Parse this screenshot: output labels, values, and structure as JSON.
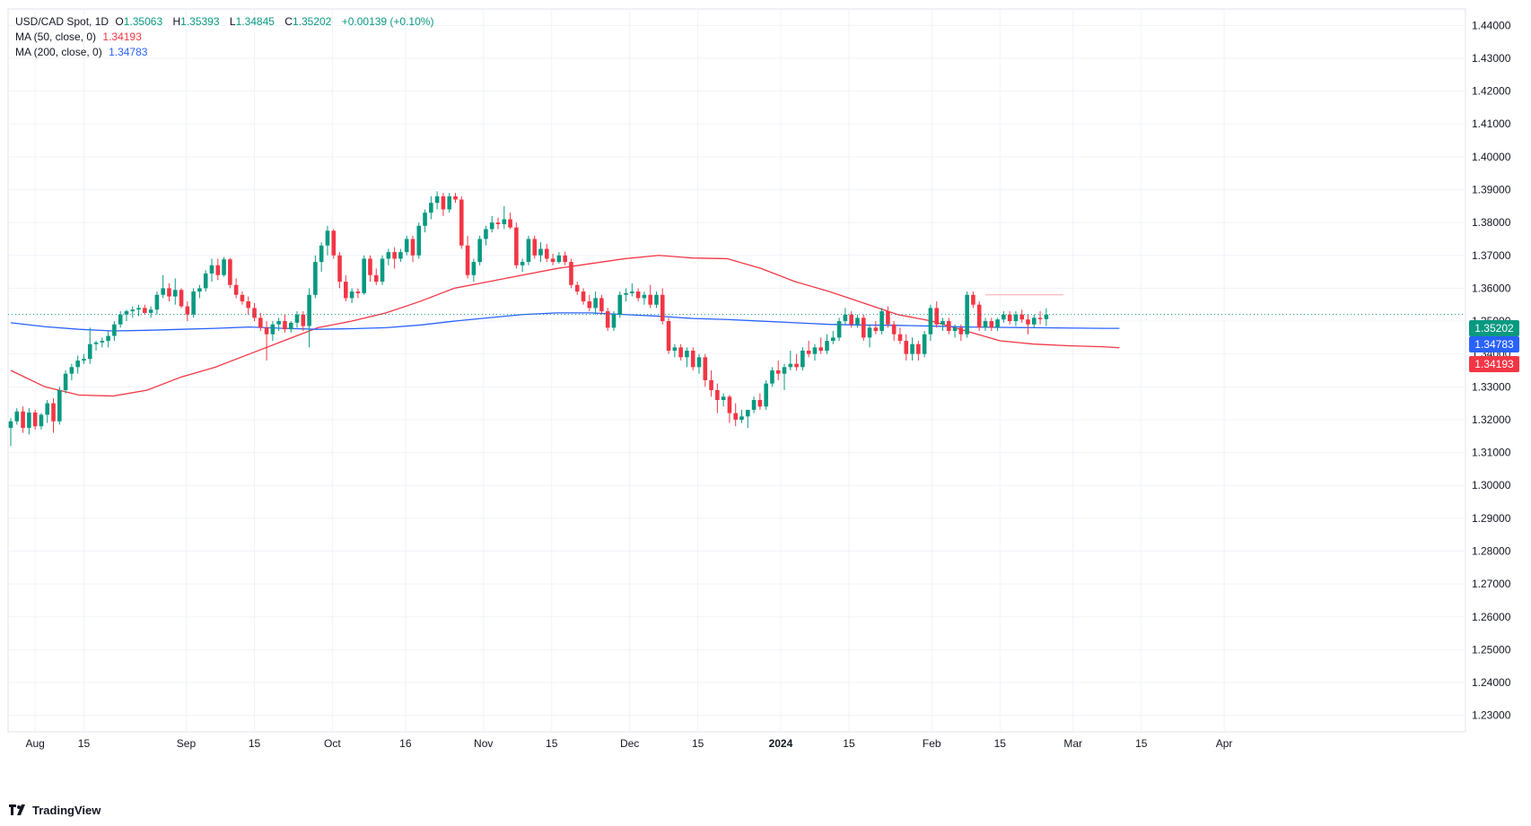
{
  "legend": {
    "symbol": "USD/CAD Spot, 1D",
    "o_label": "O",
    "open": "1.35063",
    "h_label": "H",
    "high": "1.35393",
    "l_label": "L",
    "low": "1.34845",
    "c_label": "C",
    "close": "1.35202",
    "change": "+0.00139 (+0.10%)",
    "ma50_label": "MA (50, close, 0)",
    "ma50_value": "1.34193",
    "ma200_label": "MA (200, close, 0)",
    "ma200_value": "1.34783"
  },
  "badges": {
    "last": "1.35202",
    "ma200": "1.34783",
    "ma50": "1.34193"
  },
  "brand": "TradingView",
  "colors": {
    "up": "#089981",
    "down": "#f23645",
    "ma50": "#f23645",
    "ma200": "#2962ff",
    "grid": "#f0f3fa",
    "text": "#131722"
  },
  "chart_data": {
    "type": "candlestick",
    "ylim": [
      1.225,
      1.445
    ],
    "y_ticks": [
      "1.23000",
      "1.24000",
      "1.25000",
      "1.26000",
      "1.27000",
      "1.28000",
      "1.29000",
      "1.30000",
      "1.31000",
      "1.32000",
      "1.33000",
      "1.34000",
      "1.35000",
      "1.36000",
      "1.37000",
      "1.38000",
      "1.39000",
      "1.40000",
      "1.41000",
      "1.42000",
      "1.43000",
      "1.44000"
    ],
    "x_ticks": [
      {
        "label": "Aug",
        "day": 5,
        "bold": false
      },
      {
        "label": "15",
        "day": 15,
        "bold": false
      },
      {
        "label": "Sep",
        "day": 36,
        "bold": false
      },
      {
        "label": "15",
        "day": 50,
        "bold": false
      },
      {
        "label": "Oct",
        "day": 66,
        "bold": false
      },
      {
        "label": "16",
        "day": 81,
        "bold": false
      },
      {
        "label": "Nov",
        "day": 97,
        "bold": false
      },
      {
        "label": "15",
        "day": 111,
        "bold": false
      },
      {
        "label": "Dec",
        "day": 127,
        "bold": false
      },
      {
        "label": "15",
        "day": 141,
        "bold": false
      },
      {
        "label": "2024",
        "day": 158,
        "bold": true
      },
      {
        "label": "15",
        "day": 172,
        "bold": false
      },
      {
        "label": "Feb",
        "day": 189,
        "bold": false
      },
      {
        "label": "15",
        "day": 203,
        "bold": false
      },
      {
        "label": "Mar",
        "day": 218,
        "bold": false
      },
      {
        "label": "15",
        "day": 232,
        "bold": false
      },
      {
        "label": "Apr",
        "day": 249,
        "bold": false
      }
    ],
    "candles": [
      [
        1.3175,
        1.3205,
        1.312,
        1.3195
      ],
      [
        1.3195,
        1.3235,
        1.3185,
        1.3225
      ],
      [
        1.3225,
        1.324,
        1.316,
        1.3175
      ],
      [
        1.3175,
        1.3235,
        1.3155,
        1.3222
      ],
      [
        1.3222,
        1.323,
        1.317,
        1.318
      ],
      [
        1.318,
        1.322,
        1.317,
        1.3215
      ],
      [
        1.3215,
        1.326,
        1.319,
        1.325
      ],
      [
        1.325,
        1.3265,
        1.316,
        1.3195
      ],
      [
        1.3195,
        1.33,
        1.3185,
        1.329
      ],
      [
        1.329,
        1.335,
        1.328,
        1.334
      ],
      [
        1.334,
        1.337,
        1.332,
        1.336
      ],
      [
        1.336,
        1.3395,
        1.334,
        1.338
      ],
      [
        1.338,
        1.34,
        1.337,
        1.3385
      ],
      [
        1.3385,
        1.348,
        1.337,
        1.343
      ],
      [
        1.343,
        1.344,
        1.341,
        1.3435
      ],
      [
        1.3435,
        1.345,
        1.342,
        1.344
      ],
      [
        1.344,
        1.347,
        1.342,
        1.3455
      ],
      [
        1.3455,
        1.35,
        1.344,
        1.349
      ],
      [
        1.349,
        1.353,
        1.348,
        1.352
      ],
      [
        1.352,
        1.3535,
        1.35,
        1.353
      ],
      [
        1.353,
        1.3545,
        1.351,
        1.3535
      ],
      [
        1.3535,
        1.355,
        1.3515,
        1.354
      ],
      [
        1.354,
        1.355,
        1.352,
        1.3525
      ],
      [
        1.3525,
        1.3545,
        1.351,
        1.3535
      ],
      [
        1.3535,
        1.359,
        1.352,
        1.358
      ],
      [
        1.358,
        1.364,
        1.357,
        1.36
      ],
      [
        1.36,
        1.3615,
        1.356,
        1.3575
      ],
      [
        1.3575,
        1.363,
        1.355,
        1.3595
      ],
      [
        1.3595,
        1.36,
        1.354,
        1.3545
      ],
      [
        1.3545,
        1.356,
        1.35,
        1.352
      ],
      [
        1.352,
        1.36,
        1.351,
        1.359
      ],
      [
        1.359,
        1.361,
        1.357,
        1.36
      ],
      [
        1.36,
        1.3655,
        1.359,
        1.3645
      ],
      [
        1.3645,
        1.369,
        1.362,
        1.367
      ],
      [
        1.367,
        1.369,
        1.3625,
        1.364
      ],
      [
        1.364,
        1.3695,
        1.3635,
        1.3688
      ],
      [
        1.3688,
        1.3692,
        1.36,
        1.361
      ],
      [
        1.361,
        1.363,
        1.357,
        1.358
      ],
      [
        1.358,
        1.359,
        1.355,
        1.356
      ],
      [
        1.356,
        1.3575,
        1.352,
        1.354
      ],
      [
        1.354,
        1.3555,
        1.35,
        1.351
      ],
      [
        1.351,
        1.3525,
        1.347,
        1.348
      ],
      [
        1.348,
        1.35,
        1.338,
        1.346
      ],
      [
        1.346,
        1.35,
        1.344,
        1.349
      ],
      [
        1.349,
        1.351,
        1.347,
        1.35
      ],
      [
        1.35,
        1.352,
        1.3465,
        1.3475
      ],
      [
        1.3475,
        1.35,
        1.3465,
        1.3495
      ],
      [
        1.3495,
        1.353,
        1.348,
        1.352
      ],
      [
        1.352,
        1.353,
        1.347,
        1.3485
      ],
      [
        1.3485,
        1.36,
        1.342,
        1.358
      ],
      [
        1.358,
        1.37,
        1.357,
        1.368
      ],
      [
        1.368,
        1.374,
        1.365,
        1.373
      ],
      [
        1.373,
        1.379,
        1.37,
        1.3775
      ],
      [
        1.3775,
        1.378,
        1.369,
        1.37
      ],
      [
        1.37,
        1.371,
        1.36,
        1.362
      ],
      [
        1.362,
        1.364,
        1.356,
        1.357
      ],
      [
        1.357,
        1.36,
        1.3555,
        1.359
      ],
      [
        1.359,
        1.36,
        1.357,
        1.3585
      ],
      [
        1.3585,
        1.37,
        1.358,
        1.369
      ],
      [
        1.369,
        1.37,
        1.362,
        1.364
      ],
      [
        1.364,
        1.366,
        1.361,
        1.362
      ],
      [
        1.362,
        1.37,
        1.361,
        1.369
      ],
      [
        1.369,
        1.372,
        1.367,
        1.371
      ],
      [
        1.371,
        1.3725,
        1.366,
        1.369
      ],
      [
        1.369,
        1.372,
        1.368,
        1.371
      ],
      [
        1.371,
        1.376,
        1.37,
        1.375
      ],
      [
        1.375,
        1.376,
        1.368,
        1.37
      ],
      [
        1.37,
        1.38,
        1.369,
        1.379
      ],
      [
        1.379,
        1.384,
        1.377,
        1.383
      ],
      [
        1.383,
        1.388,
        1.381,
        1.386
      ],
      [
        1.386,
        1.3895,
        1.384,
        1.388
      ],
      [
        1.388,
        1.389,
        1.382,
        1.384
      ],
      [
        1.384,
        1.389,
        1.383,
        1.388
      ],
      [
        1.388,
        1.389,
        1.386,
        1.387
      ],
      [
        1.387,
        1.388,
        1.372,
        1.373
      ],
      [
        1.373,
        1.376,
        1.363,
        1.364
      ],
      [
        1.364,
        1.369,
        1.362,
        1.368
      ],
      [
        1.368,
        1.376,
        1.367,
        1.375
      ],
      [
        1.375,
        1.379,
        1.373,
        1.378
      ],
      [
        1.378,
        1.382,
        1.377,
        1.38
      ],
      [
        1.38,
        1.3815,
        1.378,
        1.3795
      ],
      [
        1.3795,
        1.385,
        1.378,
        1.381
      ],
      [
        1.381,
        1.383,
        1.378,
        1.3785
      ],
      [
        1.3785,
        1.38,
        1.366,
        1.367
      ],
      [
        1.367,
        1.369,
        1.365,
        1.368
      ],
      [
        1.368,
        1.376,
        1.367,
        1.375
      ],
      [
        1.375,
        1.376,
        1.369,
        1.37
      ],
      [
        1.37,
        1.374,
        1.368,
        1.372
      ],
      [
        1.372,
        1.3735,
        1.368,
        1.369
      ],
      [
        1.369,
        1.3705,
        1.367,
        1.368
      ],
      [
        1.368,
        1.371,
        1.3675,
        1.37
      ],
      [
        1.37,
        1.3712,
        1.367,
        1.368
      ],
      [
        1.368,
        1.369,
        1.36,
        1.361
      ],
      [
        1.361,
        1.362,
        1.358,
        1.359
      ],
      [
        1.359,
        1.36,
        1.355,
        1.356
      ],
      [
        1.356,
        1.358,
        1.353,
        1.354
      ],
      [
        1.354,
        1.359,
        1.352,
        1.357
      ],
      [
        1.357,
        1.358,
        1.352,
        1.353
      ],
      [
        1.353,
        1.354,
        1.347,
        1.348
      ],
      [
        1.348,
        1.353,
        1.347,
        1.352
      ],
      [
        1.352,
        1.359,
        1.351,
        1.358
      ],
      [
        1.358,
        1.36,
        1.356,
        1.3585
      ],
      [
        1.3585,
        1.3615,
        1.3575,
        1.359
      ],
      [
        1.359,
        1.36,
        1.356,
        1.357
      ],
      [
        1.357,
        1.359,
        1.355,
        1.358
      ],
      [
        1.358,
        1.361,
        1.354,
        1.355
      ],
      [
        1.355,
        1.359,
        1.354,
        1.358
      ],
      [
        1.358,
        1.36,
        1.349,
        1.35
      ],
      [
        1.35,
        1.351,
        1.34,
        1.341
      ],
      [
        1.341,
        1.343,
        1.339,
        1.342
      ],
      [
        1.342,
        1.343,
        1.338,
        1.339
      ],
      [
        1.339,
        1.342,
        1.336,
        1.341
      ],
      [
        1.341,
        1.342,
        1.335,
        1.336
      ],
      [
        1.336,
        1.34,
        1.334,
        1.339
      ],
      [
        1.339,
        1.34,
        1.33,
        1.332
      ],
      [
        1.332,
        1.335,
        1.327,
        1.329
      ],
      [
        1.329,
        1.331,
        1.322,
        1.326
      ],
      [
        1.326,
        1.328,
        1.324,
        1.327
      ],
      [
        1.327,
        1.3275,
        1.319,
        1.322
      ],
      [
        1.322,
        1.325,
        1.318,
        1.32
      ],
      [
        1.32,
        1.323,
        1.319,
        1.321
      ],
      [
        1.321,
        1.323,
        1.3175,
        1.323
      ],
      [
        1.323,
        1.327,
        1.322,
        1.326
      ],
      [
        1.326,
        1.328,
        1.323,
        1.324
      ],
      [
        1.324,
        1.332,
        1.323,
        1.331
      ],
      [
        1.331,
        1.336,
        1.33,
        1.335
      ],
      [
        1.335,
        1.338,
        1.332,
        1.334
      ],
      [
        1.334,
        1.337,
        1.329,
        1.336
      ],
      [
        1.336,
        1.341,
        1.335,
        1.337
      ],
      [
        1.337,
        1.34,
        1.335,
        1.336
      ],
      [
        1.336,
        1.342,
        1.335,
        1.341
      ],
      [
        1.341,
        1.344,
        1.339,
        1.34
      ],
      [
        1.34,
        1.343,
        1.338,
        1.342
      ],
      [
        1.342,
        1.345,
        1.34,
        1.341
      ],
      [
        1.341,
        1.346,
        1.34,
        1.344
      ],
      [
        1.344,
        1.347,
        1.343,
        1.345
      ],
      [
        1.345,
        1.351,
        1.344,
        1.35
      ],
      [
        1.35,
        1.354,
        1.349,
        1.352
      ],
      [
        1.352,
        1.353,
        1.348,
        1.349
      ],
      [
        1.349,
        1.352,
        1.348,
        1.351
      ],
      [
        1.351,
        1.352,
        1.344,
        1.345
      ],
      [
        1.345,
        1.349,
        1.342,
        1.348
      ],
      [
        1.348,
        1.35,
        1.346,
        1.347
      ],
      [
        1.347,
        1.354,
        1.346,
        1.353
      ],
      [
        1.353,
        1.3545,
        1.348,
        1.349
      ],
      [
        1.349,
        1.35,
        1.344,
        1.346
      ],
      [
        1.346,
        1.348,
        1.343,
        1.344
      ],
      [
        1.344,
        1.346,
        1.338,
        1.34
      ],
      [
        1.34,
        1.345,
        1.338,
        1.343
      ],
      [
        1.343,
        1.344,
        1.338,
        1.34
      ],
      [
        1.34,
        1.347,
        1.339,
        1.346
      ],
      [
        1.346,
        1.355,
        1.344,
        1.354
      ],
      [
        1.354,
        1.356,
        1.348,
        1.349
      ],
      [
        1.349,
        1.351,
        1.347,
        1.35
      ],
      [
        1.35,
        1.351,
        1.346,
        1.347
      ],
      [
        1.347,
        1.349,
        1.345,
        1.348
      ],
      [
        1.348,
        1.349,
        1.344,
        1.346
      ],
      [
        1.346,
        1.359,
        1.345,
        1.358
      ],
      [
        1.358,
        1.359,
        1.354,
        1.355
      ],
      [
        1.355,
        1.356,
        1.347,
        1.348
      ],
      [
        1.348,
        1.351,
        1.347,
        1.35
      ],
      [
        1.35,
        1.351,
        1.347,
        1.348
      ],
      [
        1.348,
        1.351,
        1.347,
        1.3505
      ],
      [
        1.3505,
        1.353,
        1.3495,
        1.352
      ],
      [
        1.352,
        1.353,
        1.349,
        1.35
      ],
      [
        1.35,
        1.353,
        1.3485,
        1.352
      ],
      [
        1.352,
        1.3535,
        1.3495,
        1.3505
      ],
      [
        1.3505,
        1.352,
        1.346,
        1.349
      ],
      [
        1.349,
        1.352,
        1.348,
        1.351
      ],
      [
        1.351,
        1.353,
        1.349,
        1.3506
      ],
      [
        1.3506,
        1.3539,
        1.3485,
        1.352
      ]
    ],
    "ma50": [
      [
        0,
        1.335
      ],
      [
        10,
        1.33
      ],
      [
        20,
        1.3275
      ],
      [
        30,
        1.3272
      ],
      [
        40,
        1.329
      ],
      [
        50,
        1.333
      ],
      [
        60,
        1.336
      ],
      [
        70,
        1.34
      ],
      [
        80,
        1.344
      ],
      [
        90,
        1.348
      ],
      [
        100,
        1.35
      ],
      [
        110,
        1.3525
      ],
      [
        120,
        1.356
      ],
      [
        130,
        1.36
      ],
      [
        140,
        1.362
      ],
      [
        150,
        1.364
      ],
      [
        160,
        1.366
      ],
      [
        170,
        1.3675
      ],
      [
        180,
        1.369
      ],
      [
        190,
        1.37
      ],
      [
        200,
        1.3692
      ],
      [
        210,
        1.369
      ],
      [
        220,
        1.366
      ],
      [
        230,
        1.362
      ],
      [
        240,
        1.359
      ],
      [
        250,
        1.3555
      ],
      [
        260,
        1.352
      ],
      [
        270,
        1.35
      ],
      [
        280,
        1.347
      ],
      [
        290,
        1.344
      ],
      [
        300,
        1.343
      ],
      [
        310,
        1.3425
      ],
      [
        320,
        1.3422
      ],
      [
        325,
        1.3419
      ]
    ],
    "ma200": [
      [
        0,
        1.3495
      ],
      [
        10,
        1.3483
      ],
      [
        20,
        1.3475
      ],
      [
        30,
        1.347
      ],
      [
        40,
        1.3472
      ],
      [
        50,
        1.3475
      ],
      [
        60,
        1.3478
      ],
      [
        70,
        1.3482
      ],
      [
        80,
        1.3478
      ],
      [
        90,
        1.3475
      ],
      [
        100,
        1.3477
      ],
      [
        110,
        1.348
      ],
      [
        120,
        1.3488
      ],
      [
        130,
        1.35
      ],
      [
        140,
        1.351
      ],
      [
        150,
        1.352
      ],
      [
        160,
        1.3525
      ],
      [
        170,
        1.3525
      ],
      [
        180,
        1.352
      ],
      [
        190,
        1.3515
      ],
      [
        200,
        1.3508
      ],
      [
        210,
        1.3505
      ],
      [
        220,
        1.35
      ],
      [
        230,
        1.3495
      ],
      [
        240,
        1.349
      ],
      [
        250,
        1.3488
      ],
      [
        260,
        1.3487
      ],
      [
        270,
        1.3485
      ],
      [
        280,
        1.3482
      ],
      [
        290,
        1.3481
      ],
      [
        300,
        1.348
      ],
      [
        310,
        1.3479
      ],
      [
        320,
        1.3478
      ],
      [
        325,
        1.3478
      ]
    ],
    "resistance": 1.358,
    "last_price": 1.35202
  }
}
